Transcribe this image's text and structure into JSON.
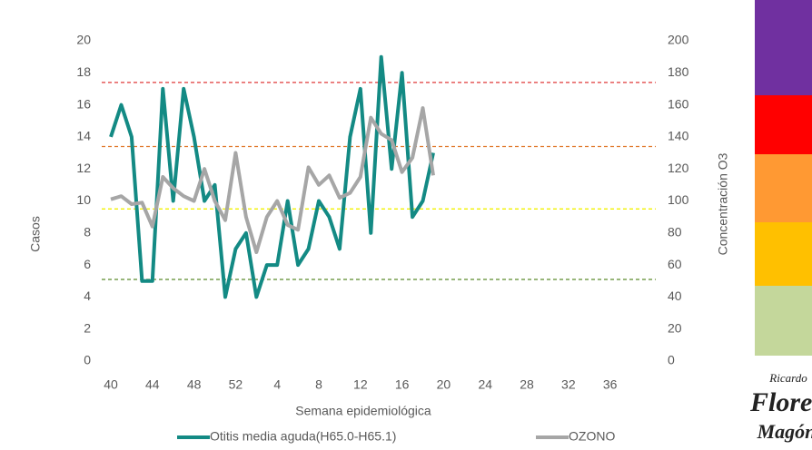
{
  "chart_data": {
    "type": "line",
    "x_label": "Semana epidemiológica",
    "y_label": "Casos",
    "y2_label": "Concentración O3",
    "categories": [
      "40",
      null,
      null,
      null,
      "44",
      null,
      null,
      null,
      "48",
      null,
      null,
      null,
      "52",
      null,
      null,
      null,
      "4",
      null,
      null,
      null,
      "8",
      null,
      null,
      null,
      "12",
      null,
      null,
      null,
      "16",
      null,
      null,
      null,
      "20",
      null,
      null,
      null,
      "24",
      null,
      null,
      null,
      "28",
      null,
      null,
      null,
      "32",
      null,
      null,
      null,
      "36",
      null,
      null,
      null
    ],
    "series": [
      {
        "name": "Otitis media aguda(H65.0-H65.1)",
        "color": "#138a84",
        "axis": "y",
        "values": [
          14,
          16,
          14,
          5,
          5,
          17,
          10,
          17,
          14,
          10,
          11,
          4,
          7,
          8,
          4,
          6,
          6,
          10,
          6,
          7,
          10,
          9,
          7,
          14,
          17,
          8,
          19,
          12,
          18,
          9,
          10,
          13,
          null,
          null,
          null,
          null,
          null,
          null,
          null,
          null,
          null,
          null,
          null,
          null,
          null,
          null,
          null,
          null,
          null,
          null,
          null,
          null
        ]
      },
      {
        "name": "OZONO",
        "color": "#a6a6a6",
        "axis": "y2",
        "values": [
          101,
          103,
          98,
          99,
          84,
          115,
          108,
          103,
          100,
          120,
          100,
          88,
          130,
          90,
          68,
          90,
          100,
          85,
          82,
          121,
          110,
          116,
          102,
          105,
          115,
          152,
          142,
          138,
          118,
          127,
          158,
          116,
          null,
          null,
          null,
          null,
          null,
          null,
          null,
          null,
          null,
          null,
          null,
          null,
          null,
          null,
          null,
          null,
          null,
          null,
          null,
          null
        ]
      }
    ],
    "ylim": [
      0,
      20
    ],
    "yticks": [
      0,
      2,
      4,
      6,
      8,
      10,
      12,
      14,
      16,
      18,
      20
    ],
    "y2lim": [
      0,
      200
    ],
    "y2ticks": [
      0,
      20,
      40,
      60,
      80,
      100,
      120,
      140,
      160,
      180,
      200
    ],
    "reference_lines": [
      {
        "value": 174,
        "color": "#e03a3a",
        "axis": "y2"
      },
      {
        "value": 134,
        "color": "#e0782a",
        "axis": "y2"
      },
      {
        "value": 95,
        "color": "#f2f200",
        "axis": "y2"
      },
      {
        "value": 51,
        "color": "#5a8a2a",
        "axis": "y2"
      }
    ],
    "legend": "bottom",
    "logo": [
      "Ricardo",
      "Flores",
      "Magón"
    ]
  }
}
